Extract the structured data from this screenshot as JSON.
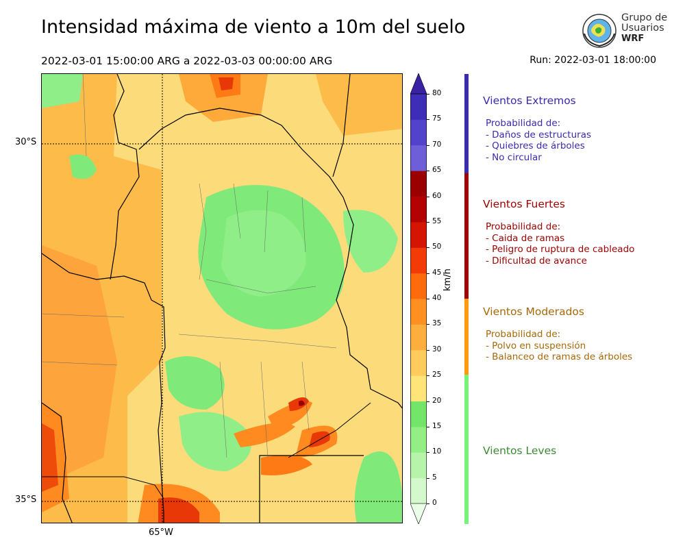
{
  "header": {
    "title": "Intensidad máxima de viento a 10m del suelo",
    "period": "2022-03-01 15:00:00 ARG  a  2022-03-03 00:00:00 ARG",
    "run": "Run: 2022-03-01 18:00:00"
  },
  "logo": {
    "line1": "Grupo de",
    "line2": "Usuarios",
    "line3": "WRF"
  },
  "map": {
    "lat_labels": [
      "30°S",
      "35°S"
    ],
    "lon_labels": [
      "65°W"
    ]
  },
  "colorbar": {
    "unit": "km/h",
    "ticks": [
      "0",
      "5",
      "10",
      "15",
      "20",
      "25",
      "30",
      "35",
      "40",
      "45",
      "50",
      "55",
      "60",
      "65",
      "70",
      "75",
      "80"
    ],
    "colors": [
      "#eafde6",
      "#d3f9cc",
      "#b6f4a9",
      "#93ee86",
      "#73e66a",
      "#ffe479",
      "#fecb5c",
      "#fdae3c",
      "#fe9022",
      "#fe6b0c",
      "#f23b06",
      "#d51504",
      "#b40202",
      "#9a0000",
      "#6e5fd8",
      "#5242cc",
      "#3d2db7",
      "#3a22a4"
    ],
    "category_colors": {
      "extremos": "#3a2aae",
      "fuertes": "#9d0000",
      "moderados": "#ff9a10",
      "leves": "#79f27a"
    }
  },
  "categories": [
    {
      "title": "Vientos Extremos",
      "color": "#3a2aae",
      "heading": "Probabilidad de:",
      "items": [
        "- Daños de estructuras",
        "- Quiebres de árboles",
        "- No circular"
      ]
    },
    {
      "title": "Vientos Fuertes",
      "color": "#9d0000",
      "heading": "Probabilidad de:",
      "items": [
        "- Caida de ramas",
        "- Peligro de ruptura de cableado",
        "- Dificultad de avance"
      ]
    },
    {
      "title": "Vientos Moderados",
      "color": "#a6690a",
      "heading": "Probabilidad de:",
      "items": [
        "- Polvo en suspensión",
        "- Balanceo de ramas de árboles"
      ]
    },
    {
      "title": "Vientos Leves",
      "color": "#3a8a32"
    }
  ]
}
